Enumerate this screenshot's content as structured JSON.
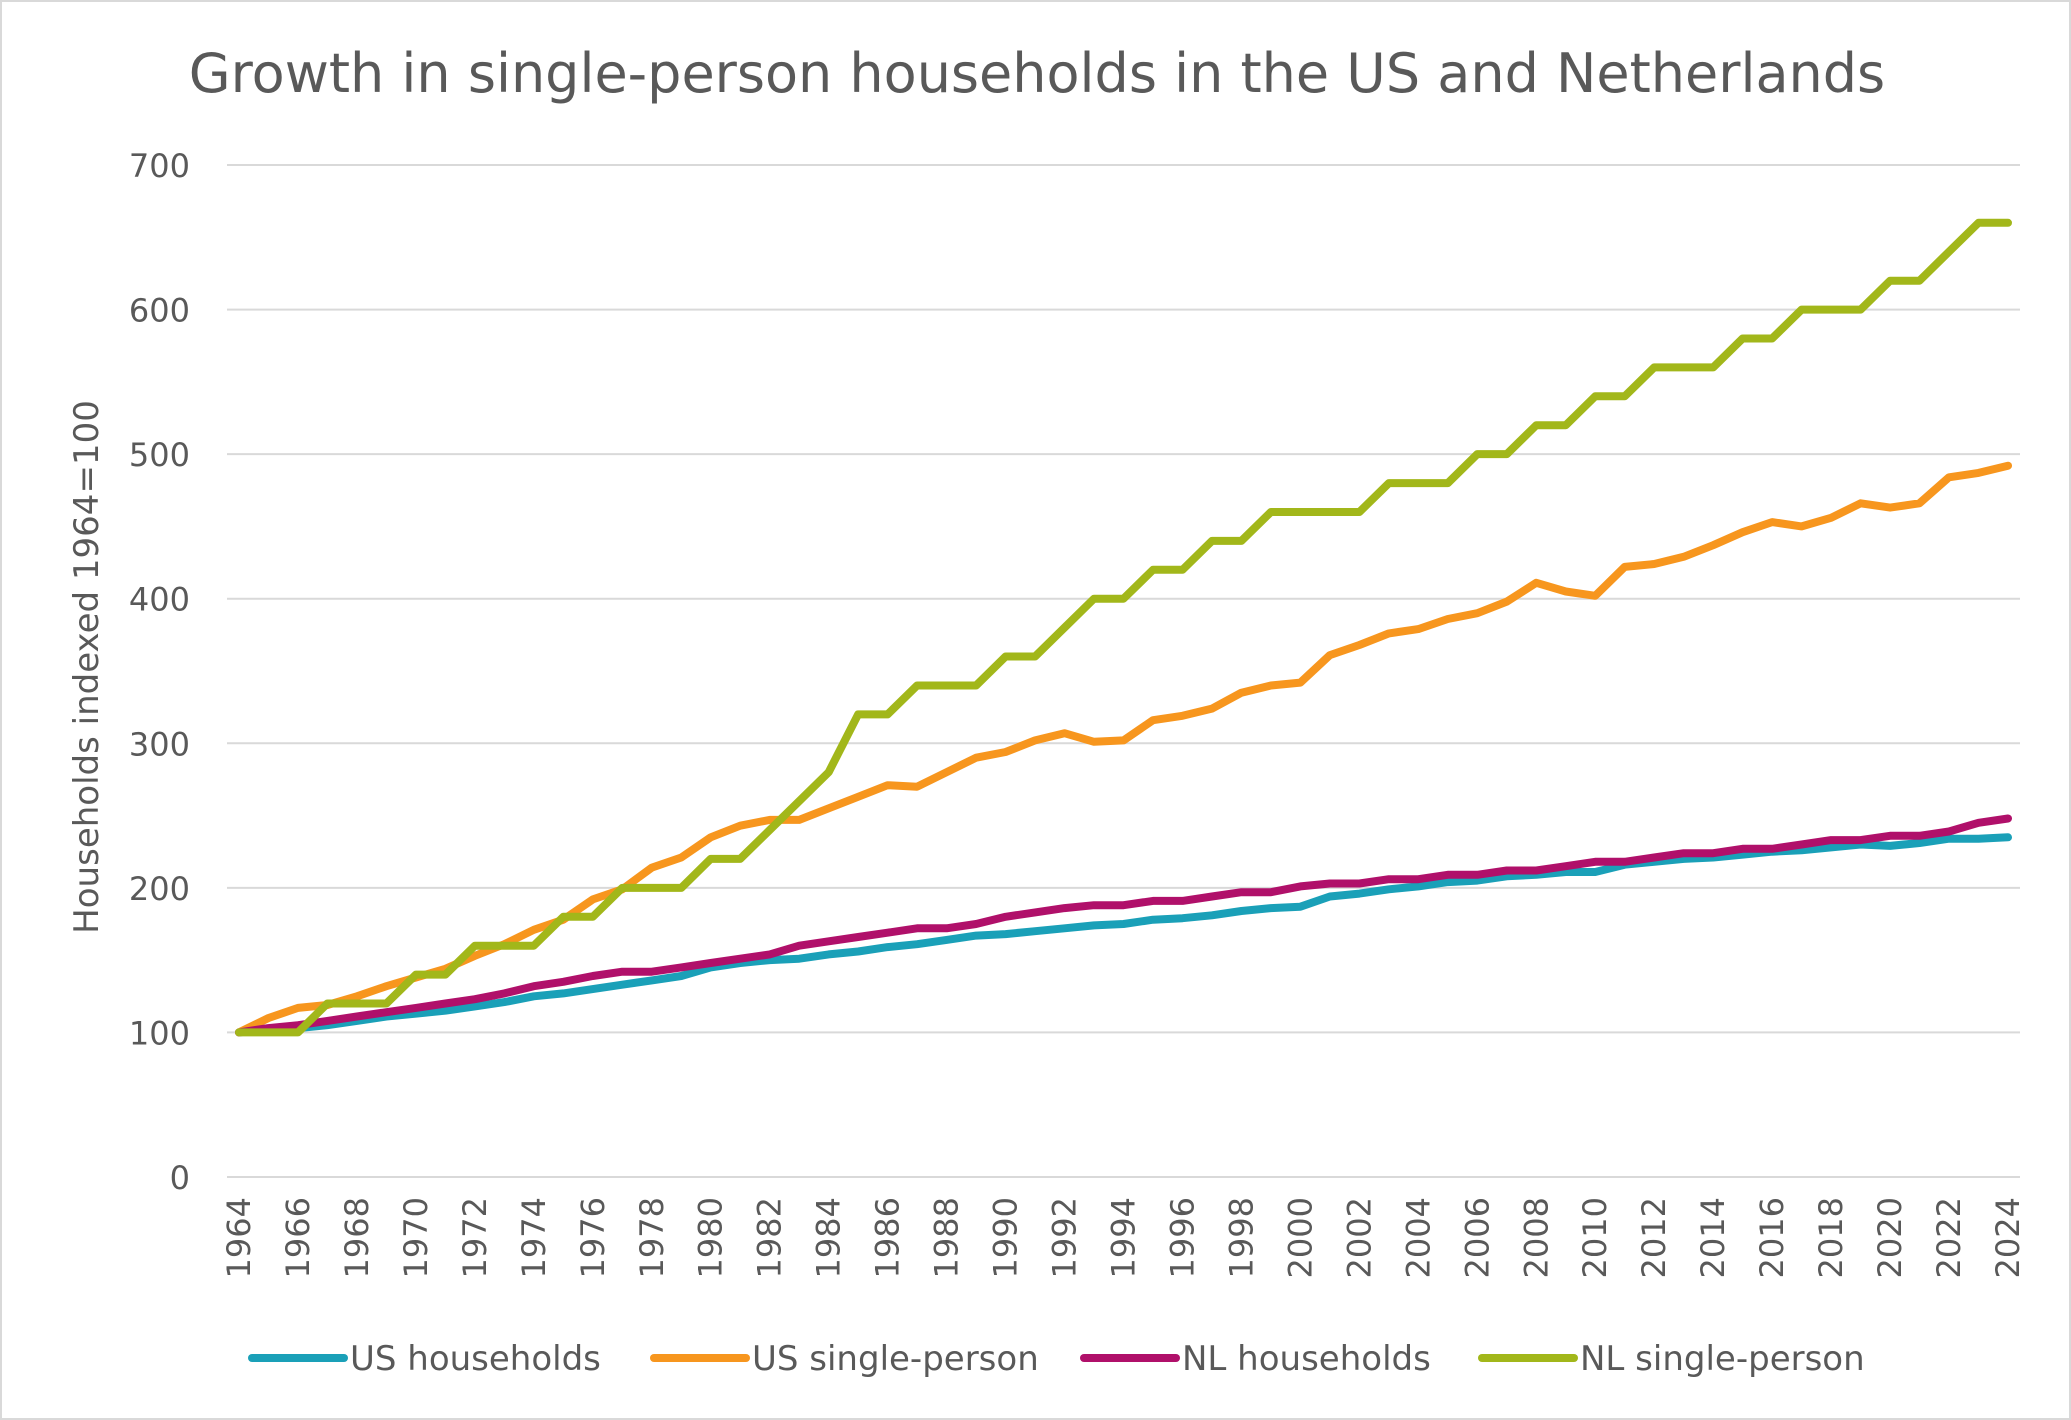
{
  "chart_data": {
    "type": "line",
    "title": "Growth in single-person households in the US and Netherlands",
    "ylabel": "Households indexed 1964=100",
    "xlabel": "",
    "ylim": [
      0,
      700
    ],
    "yticks": [
      0,
      100,
      200,
      300,
      400,
      500,
      600,
      700
    ],
    "x": [
      1964,
      1965,
      1966,
      1967,
      1968,
      1969,
      1970,
      1971,
      1972,
      1973,
      1974,
      1975,
      1976,
      1977,
      1978,
      1979,
      1980,
      1981,
      1982,
      1983,
      1984,
      1985,
      1986,
      1987,
      1988,
      1989,
      1990,
      1991,
      1992,
      1993,
      1994,
      1995,
      1996,
      1997,
      1998,
      1999,
      2000,
      2001,
      2002,
      2003,
      2004,
      2005,
      2006,
      2007,
      2008,
      2009,
      2010,
      2011,
      2012,
      2013,
      2014,
      2015,
      2016,
      2017,
      2018,
      2019,
      2020,
      2021,
      2022,
      2023,
      2024
    ],
    "xtick_labels": [
      "1964",
      "1966",
      "1968",
      "1970",
      "1972",
      "1974",
      "1976",
      "1978",
      "1980",
      "1982",
      "1984",
      "1986",
      "1988",
      "1990",
      "1992",
      "1994",
      "1996",
      "1998",
      "2000",
      "2002",
      "2004",
      "2006",
      "2008",
      "2010",
      "2012",
      "2014",
      "2016",
      "2018",
      "2020",
      "2022",
      "2024"
    ],
    "grid": true,
    "legend_position": "bottom",
    "series": [
      {
        "name": "US households",
        "color": "#1aa0b8",
        "values": [
          100,
          102,
          103,
          105,
          108,
          111,
          113,
          115,
          118,
          121,
          125,
          127,
          130,
          133,
          136,
          139,
          145,
          148,
          150,
          151,
          154,
          156,
          159,
          161,
          164,
          167,
          168,
          170,
          172,
          174,
          175,
          178,
          179,
          181,
          184,
          186,
          187,
          194,
          196,
          199,
          201,
          204,
          205,
          208,
          209,
          211,
          211,
          216,
          218,
          220,
          221,
          223,
          225,
          226,
          228,
          230,
          229,
          231,
          234,
          234,
          235
        ]
      },
      {
        "name": "US single-person",
        "color": "#f7961e",
        "values": [
          100,
          110,
          117,
          119,
          125,
          132,
          138,
          144,
          153,
          161,
          171,
          178,
          192,
          199,
          214,
          221,
          235,
          243,
          247,
          247,
          255,
          263,
          271,
          270,
          280,
          290,
          294,
          302,
          307,
          301,
          302,
          316,
          319,
          324,
          335,
          340,
          342,
          361,
          368,
          376,
          379,
          386,
          390,
          398,
          411,
          405,
          402,
          422,
          424,
          429,
          437,
          446,
          453,
          450,
          456,
          466,
          463,
          466,
          484,
          487,
          492
        ]
      },
      {
        "name": "NL households",
        "color": "#b0106a",
        "values": [
          100,
          103,
          105,
          108,
          111,
          114,
          117,
          120,
          123,
          127,
          132,
          135,
          139,
          142,
          142,
          145,
          148,
          151,
          154,
          160,
          163,
          166,
          169,
          172,
          172,
          175,
          180,
          183,
          186,
          188,
          188,
          191,
          191,
          194,
          197,
          197,
          201,
          203,
          203,
          206,
          206,
          209,
          209,
          212,
          212,
          215,
          218,
          218,
          221,
          224,
          224,
          227,
          227,
          230,
          233,
          233,
          236,
          236,
          239,
          245,
          248
        ]
      },
      {
        "name": "NL single-person",
        "color": "#a2b71a",
        "values": [
          100,
          100,
          100,
          120,
          120,
          120,
          140,
          140,
          160,
          160,
          160,
          180,
          180,
          200,
          200,
          200,
          220,
          220,
          240,
          260,
          280,
          320,
          320,
          340,
          340,
          340,
          360,
          360,
          380,
          400,
          400,
          420,
          420,
          440,
          440,
          460,
          460,
          460,
          460,
          480,
          480,
          480,
          500,
          500,
          520,
          520,
          540,
          540,
          560,
          560,
          560,
          580,
          580,
          600,
          600,
          600,
          620,
          620,
          640,
          660,
          660
        ]
      }
    ]
  }
}
